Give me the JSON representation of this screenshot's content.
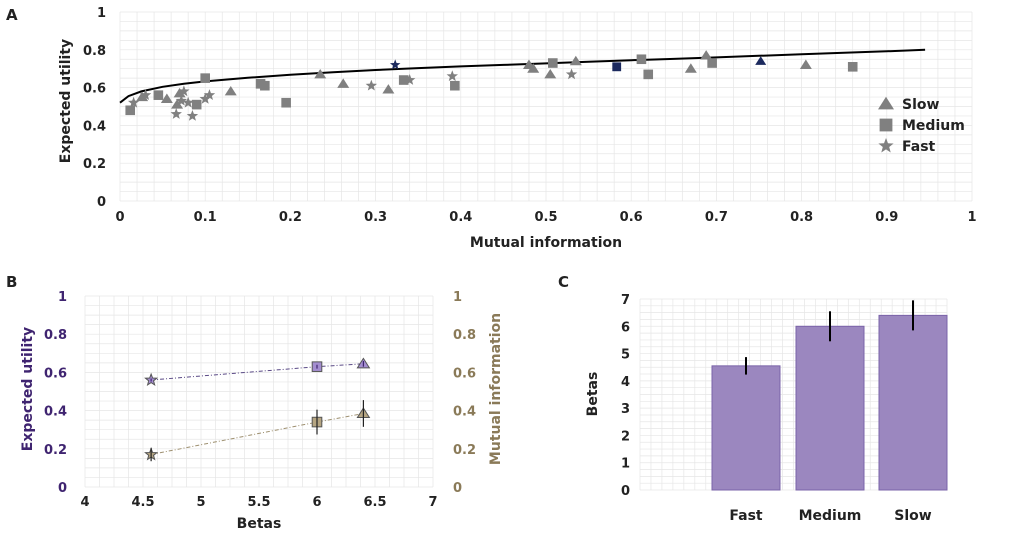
{
  "colors": {
    "grey": "#808080",
    "navy": "#1c2a5e",
    "purple": "#3f2470",
    "tan": "#8a7a58",
    "bar": "#9b87bf",
    "bar_edge": "#7a63a8",
    "grid": "#e6e6e6",
    "ep_purple": "#a48ed0",
    "ep_tan": "#b5a582"
  },
  "chart_data": [
    {
      "panel": "A",
      "type": "scatter",
      "xlabel": "Mutual information",
      "ylabel": "Expected utility",
      "xlim": [
        0,
        1
      ],
      "ylim": [
        0,
        1
      ],
      "xticks": [
        "0",
        "0.1",
        "0.2",
        "0.3",
        "0.4",
        "0.5",
        "0.6",
        "0.7",
        "0.8",
        "0.9",
        "1"
      ],
      "yticks": [
        "0",
        "0.2",
        "0.4",
        "0.6",
        "0.8",
        "1"
      ],
      "legend": {
        "position": "right",
        "entries": [
          "Slow",
          "Medium",
          "Fast"
        ]
      },
      "curve": {
        "x": [
          0.0,
          0.01,
          0.025,
          0.05,
          0.075,
          0.1,
          0.15,
          0.2,
          0.25,
          0.3,
          0.35,
          0.4,
          0.45,
          0.5,
          0.55,
          0.6,
          0.65,
          0.7,
          0.75,
          0.8,
          0.85,
          0.9,
          0.945
        ],
        "y": [
          0.52,
          0.555,
          0.58,
          0.604,
          0.62,
          0.633,
          0.652,
          0.668,
          0.681,
          0.693,
          0.703,
          0.712,
          0.72,
          0.728,
          0.737,
          0.745,
          0.752,
          0.76,
          0.768,
          0.776,
          0.784,
          0.792,
          0.8
        ]
      },
      "series": [
        {
          "name": "Slow",
          "marker": "triangle",
          "points": [
            [
              0.026,
              0.55
            ],
            [
              0.055,
              0.54
            ],
            [
              0.067,
              0.51
            ],
            [
              0.07,
              0.57
            ],
            [
              0.13,
              0.58
            ],
            [
              0.235,
              0.67
            ],
            [
              0.262,
              0.62
            ],
            [
              0.315,
              0.59
            ],
            [
              0.48,
              0.72
            ],
            [
              0.485,
              0.7
            ],
            [
              0.505,
              0.67
            ],
            [
              0.535,
              0.74
            ],
            [
              0.67,
              0.7
            ],
            [
              0.688,
              0.77
            ],
            [
              0.805,
              0.72
            ]
          ]
        },
        {
          "name": "Medium",
          "marker": "square",
          "points": [
            [
              0.012,
              0.48
            ],
            [
              0.045,
              0.56
            ],
            [
              0.09,
              0.51
            ],
            [
              0.1,
              0.65
            ],
            [
              0.165,
              0.62
            ],
            [
              0.17,
              0.61
            ],
            [
              0.195,
              0.52
            ],
            [
              0.333,
              0.64
            ],
            [
              0.393,
              0.61
            ],
            [
              0.508,
              0.73
            ],
            [
              0.612,
              0.75
            ],
            [
              0.62,
              0.67
            ],
            [
              0.695,
              0.73
            ],
            [
              0.86,
              0.71
            ]
          ]
        },
        {
          "name": "Fast",
          "marker": "star",
          "points": [
            [
              0.016,
              0.52
            ],
            [
              0.03,
              0.56
            ],
            [
              0.066,
              0.46
            ],
            [
              0.072,
              0.53
            ],
            [
              0.075,
              0.58
            ],
            [
              0.08,
              0.52
            ],
            [
              0.085,
              0.45
            ],
            [
              0.1,
              0.54
            ],
            [
              0.105,
              0.56
            ],
            [
              0.295,
              0.61
            ],
            [
              0.34,
              0.64
            ],
            [
              0.39,
              0.66
            ],
            [
              0.53,
              0.67
            ]
          ]
        }
      ],
      "highlighted": [
        {
          "marker": "star",
          "x": 0.323,
          "y": 0.72
        },
        {
          "marker": "square",
          "x": 0.583,
          "y": 0.71
        },
        {
          "marker": "triangle",
          "x": 0.752,
          "y": 0.74
        }
      ]
    },
    {
      "panel": "B",
      "type": "line",
      "xlabel": "Betas",
      "ylabel_left": "Expected utility",
      "ylabel_right": "Mutual information",
      "xlim": [
        4,
        7
      ],
      "ylim": [
        0,
        1
      ],
      "xticks": [
        "4",
        "4.5",
        "5",
        "5.5",
        "6",
        "6.5",
        "7"
      ],
      "yticks": [
        "0",
        "0.2",
        "0.4",
        "0.6",
        "0.8",
        "1"
      ],
      "series": [
        {
          "name": "Expected utility",
          "x": [
            4.57,
            6.0,
            6.4
          ],
          "y": [
            0.56,
            0.63,
            0.645
          ],
          "err": [
            0.008,
            0.01,
            0.015
          ],
          "markers": [
            "star",
            "square",
            "triangle"
          ]
        },
        {
          "name": "Mutual information",
          "x": [
            4.57,
            6.0,
            6.4
          ],
          "y": [
            0.17,
            0.34,
            0.385
          ],
          "err": [
            0.035,
            0.065,
            0.07
          ],
          "markers": [
            "star",
            "square",
            "triangle"
          ]
        }
      ]
    },
    {
      "panel": "C",
      "type": "bar",
      "categories": [
        "Fast",
        "Medium",
        "Slow"
      ],
      "values": [
        4.55,
        6.0,
        6.4
      ],
      "err": [
        0.32,
        0.55,
        0.55
      ],
      "ylabel": "Betas",
      "xlabel": "",
      "ylim": [
        0,
        7
      ],
      "yticks": [
        "0",
        "1",
        "2",
        "3",
        "4",
        "5",
        "6",
        "7"
      ]
    }
  ]
}
